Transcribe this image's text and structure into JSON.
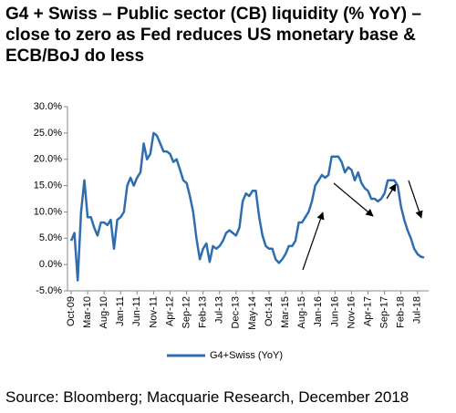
{
  "chart_data": {
    "type": "line",
    "title": "G4 + Swiss – Public sector (CB) liquidity (% YoY) – close to zero as Fed reduces US monetary base & ECB/BoJ do less",
    "categories": [
      "Oct-09",
      null,
      null,
      null,
      null,
      "Mar-10",
      null,
      null,
      null,
      null,
      "Aug-10",
      null,
      null,
      null,
      null,
      "Jan-11",
      null,
      null,
      null,
      null,
      "Jun-11",
      null,
      null,
      null,
      null,
      "Nov-11",
      null,
      null,
      null,
      null,
      "Apr-12",
      null,
      null,
      null,
      null,
      "Sep-12",
      null,
      null,
      null,
      null,
      "Feb-13",
      null,
      null,
      null,
      null,
      "Jul-13",
      null,
      null,
      null,
      null,
      "Dec-13",
      null,
      null,
      null,
      null,
      "May-14",
      null,
      null,
      null,
      null,
      "Oct-14",
      null,
      null,
      null,
      null,
      "Mar-15",
      null,
      null,
      null,
      null,
      "Aug-15",
      null,
      null,
      null,
      null,
      "Jan-16",
      null,
      null,
      null,
      null,
      "Jun-16",
      null,
      null,
      null,
      null,
      "Nov-16",
      null,
      null,
      null,
      null,
      "Apr-17",
      null,
      null,
      null,
      null,
      "Sep-17",
      null,
      null,
      null,
      null,
      "Feb-18",
      null,
      null,
      null,
      null,
      "Jul-18",
      null,
      null
    ],
    "series": [
      {
        "name": "G4+Swiss (YoY)",
        "color": "#2f6db0",
        "values": [
          4.5,
          6,
          -3,
          10,
          16,
          9,
          9,
          7,
          5.5,
          8,
          8,
          7.5,
          8.5,
          3,
          8.5,
          9,
          10,
          15,
          16.5,
          15,
          16.5,
          17.5,
          23,
          20,
          21,
          25,
          24.5,
          23,
          21.5,
          21.5,
          21,
          19.5,
          20,
          18,
          16,
          15.5,
          13,
          10,
          5,
          1,
          3,
          4,
          0.5,
          3.5,
          3,
          3.5,
          4.5,
          6,
          6.5,
          6,
          5.5,
          7,
          12,
          13.5,
          13,
          14,
          14,
          9,
          5.5,
          3.5,
          3,
          3,
          1,
          0.3,
          1,
          2,
          3.5,
          3.5,
          4.5,
          8,
          8,
          9,
          10,
          12,
          15,
          16,
          17,
          16.5,
          17,
          20.5,
          20.5,
          20.5,
          19.5,
          17.5,
          18.5,
          18,
          16,
          17.5,
          15.5,
          14.5,
          14,
          12.5,
          12.5,
          12,
          12.5,
          13.5,
          16,
          16,
          16,
          15,
          11,
          8.5,
          6.5,
          5,
          3,
          2,
          1.5,
          1.3
        ]
      }
    ],
    "ylim": [
      -5,
      30
    ],
    "yticks": [
      {
        "value": -5,
        "label": "-5.0%"
      },
      {
        "value": 0,
        "label": "0.0%"
      },
      {
        "value": 5,
        "label": "5.0%"
      },
      {
        "value": 10,
        "label": "10.0%"
      },
      {
        "value": 15,
        "label": "15.0%"
      },
      {
        "value": 20,
        "label": "20.0%"
      },
      {
        "value": 25,
        "label": "25.0%"
      },
      {
        "value": 30,
        "label": "30.0%"
      }
    ],
    "legend": "bottom",
    "source": "Source: Bloomberg; Macquarie Research, December 2018"
  }
}
